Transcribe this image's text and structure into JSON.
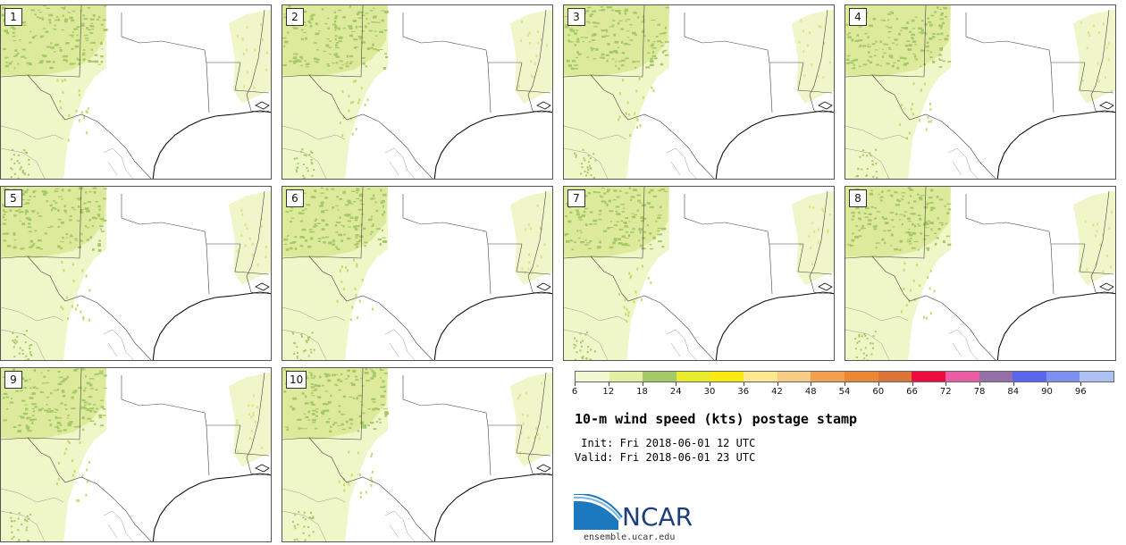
{
  "panels": [
    {
      "label": "1"
    },
    {
      "label": "2"
    },
    {
      "label": "3"
    },
    {
      "label": "4"
    },
    {
      "label": "5"
    },
    {
      "label": "6"
    },
    {
      "label": "7"
    },
    {
      "label": "8"
    },
    {
      "label": "9"
    },
    {
      "label": "10"
    }
  ],
  "colorbar": {
    "colors": [
      "#f3f8d2",
      "#e3efa2",
      "#a5c966",
      "#e7ed2c",
      "#fbe911",
      "#fde98d",
      "#f7cc84",
      "#f0a04f",
      "#ea8833",
      "#dd7538",
      "#ee0c3e",
      "#e95ea2",
      "#9470a6",
      "#5b66f0",
      "#7d90f0",
      "#adc1f3"
    ],
    "ticks": [
      "6",
      "12",
      "18",
      "24",
      "30",
      "36",
      "42",
      "48",
      "54",
      "60",
      "66",
      "72",
      "78",
      "84",
      "90",
      "96"
    ],
    "icon": "colorbar-legend"
  },
  "title": "10-m wind speed (kts) postage stamp",
  "init_line": " Init: Fri 2018-06-01 12 UTC",
  "valid_line": "Valid: Fri 2018-06-01 23 UTC",
  "logo": {
    "name": "NCAR",
    "url": "ensemble.ucar.edu",
    "icon": "ncar-logo-icon"
  }
}
